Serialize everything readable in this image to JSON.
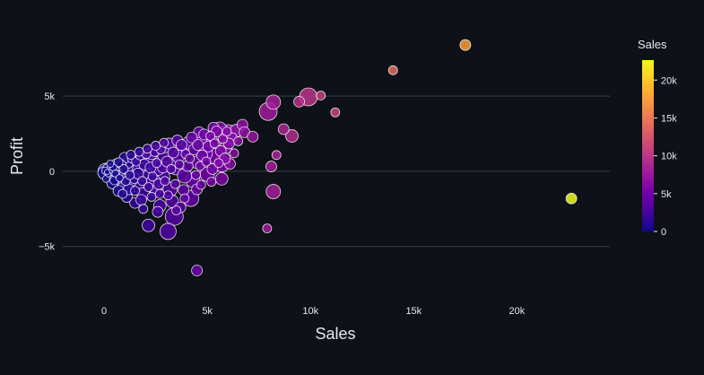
{
  "chart_data": {
    "type": "scatter",
    "title": "",
    "xlabel": "Sales",
    "ylabel": "Profit",
    "xlim": [
      -2000,
      24500
    ],
    "ylim": [
      -8300,
      10500
    ],
    "x_ticks": [
      0,
      5000,
      10000,
      15000,
      20000
    ],
    "x_tick_labels": [
      "0",
      "5k",
      "10k",
      "15k",
      "20k"
    ],
    "y_ticks": [
      -5000,
      0,
      5000
    ],
    "y_tick_labels": [
      "−5k",
      "0",
      "5k"
    ],
    "grid": "horizontal",
    "marker_size": "varies by point",
    "colorbar": {
      "title": "Sales",
      "min": 0,
      "max": 22638,
      "ticks": [
        0,
        5000,
        10000,
        15000,
        20000
      ],
      "tick_labels": [
        "0",
        "5k",
        "10k",
        "15k",
        "20k"
      ],
      "colorscale": [
        "#0d0887",
        "#46039f",
        "#7201a8",
        "#9c179e",
        "#bd3786",
        "#d8576b",
        "#ed7953",
        "#fb9f3a",
        "#fdca26",
        "#f0f921"
      ]
    },
    "points": [
      {
        "x": 17500,
        "y": 8400,
        "r": 6
      },
      {
        "x": 13999,
        "y": 6720,
        "r": 5
      },
      {
        "x": 10500,
        "y": 5040,
        "r": 5
      },
      {
        "x": 9900,
        "y": 4950,
        "r": 10
      },
      {
        "x": 9450,
        "y": 4630,
        "r": 6
      },
      {
        "x": 11200,
        "y": 3920,
        "r": 5
      },
      {
        "x": 8200,
        "y": 4600,
        "r": 8
      },
      {
        "x": 7950,
        "y": 3980,
        "r": 10
      },
      {
        "x": 8700,
        "y": 2800,
        "r": 6
      },
      {
        "x": 9100,
        "y": 2350,
        "r": 7
      },
      {
        "x": 6700,
        "y": 3100,
        "r": 6
      },
      {
        "x": 6400,
        "y": 2700,
        "r": 7
      },
      {
        "x": 6000,
        "y": 2500,
        "r": 10
      },
      {
        "x": 8350,
        "y": 1080,
        "r": 5
      },
      {
        "x": 8100,
        "y": 320,
        "r": 6
      },
      {
        "x": 8200,
        "y": -1350,
        "r": 8
      },
      {
        "x": 7900,
        "y": -3800,
        "r": 5
      },
      {
        "x": 22638,
        "y": -1811,
        "r": 6
      },
      {
        "x": 4500,
        "y": -6600,
        "r": 6
      },
      {
        "x": 3100,
        "y": -4000,
        "r": 9
      },
      {
        "x": 3400,
        "y": -3000,
        "r": 10
      },
      {
        "x": 2150,
        "y": -3600,
        "r": 7
      },
      {
        "x": 4200,
        "y": -1800,
        "r": 9
      },
      {
        "x": 5700,
        "y": -500,
        "r": 7
      },
      {
        "x": 5700,
        "y": 500,
        "r": 9
      },
      {
        "x": 5200,
        "y": 2000,
        "r": 7
      },
      {
        "x": 4900,
        "y": 1200,
        "r": 8
      },
      {
        "x": 4500,
        "y": 600,
        "r": 7
      },
      {
        "x": 4300,
        "y": -600,
        "r": 8
      },
      {
        "x": 3800,
        "y": 1500,
        "r": 8
      },
      {
        "x": 3500,
        "y": 300,
        "r": 9
      },
      {
        "x": 3200,
        "y": -1200,
        "r": 8
      },
      {
        "x": 2900,
        "y": 1000,
        "r": 7
      },
      {
        "x": 2700,
        "y": -2300,
        "r": 7
      },
      {
        "x": 2400,
        "y": -700,
        "r": 8
      },
      {
        "x": 2200,
        "y": 600,
        "r": 7
      },
      {
        "x": 1900,
        "y": -1500,
        "r": 7
      },
      {
        "x": 1700,
        "y": 300,
        "r": 8
      },
      {
        "x": 1500,
        "y": -2100,
        "r": 6
      },
      {
        "x": 1300,
        "y": -600,
        "r": 7
      },
      {
        "x": 1100,
        "y": 300,
        "r": 7
      },
      {
        "x": 900,
        "y": -1100,
        "r": 6
      },
      {
        "x": 700,
        "y": -200,
        "r": 8
      },
      {
        "x": 500,
        "y": 100,
        "r": 7
      },
      {
        "x": 300,
        "y": -300,
        "r": 7
      },
      {
        "x": 100,
        "y": 0,
        "r": 9
      },
      {
        "x": 400,
        "y": -800,
        "r": 6
      },
      {
        "x": 600,
        "y": 400,
        "r": 7
      },
      {
        "x": 800,
        "y": 200,
        "r": 8
      },
      {
        "x": 1000,
        "y": -400,
        "r": 9
      },
      {
        "x": 1200,
        "y": 700,
        "r": 7
      },
      {
        "x": 1400,
        "y": 100,
        "r": 9
      },
      {
        "x": 1600,
        "y": -900,
        "r": 8
      },
      {
        "x": 1800,
        "y": 900,
        "r": 6
      },
      {
        "x": 2000,
        "y": -300,
        "r": 9
      },
      {
        "x": 2300,
        "y": 1200,
        "r": 7
      },
      {
        "x": 2500,
        "y": -1300,
        "r": 6
      },
      {
        "x": 2600,
        "y": 200,
        "r": 8
      },
      {
        "x": 2800,
        "y": -400,
        "r": 9
      },
      {
        "x": 3000,
        "y": 1600,
        "r": 6
      },
      {
        "x": 3300,
        "y": -2000,
        "r": 7
      },
      {
        "x": 3600,
        "y": 1000,
        "r": 7
      },
      {
        "x": 3900,
        "y": -300,
        "r": 8
      },
      {
        "x": 4100,
        "y": 1900,
        "r": 7
      },
      {
        "x": 4700,
        "y": 2200,
        "r": 7
      },
      {
        "x": 5000,
        "y": -200,
        "r": 8
      },
      {
        "x": 5400,
        "y": 1000,
        "r": 9
      },
      {
        "x": 5600,
        "y": 2800,
        "r": 8
      },
      {
        "x": 5900,
        "y": 1600,
        "r": 7
      },
      {
        "x": 6200,
        "y": 2200,
        "r": 6
      },
      {
        "x": 5300,
        "y": 2900,
        "r": 6
      },
      {
        "x": 4600,
        "y": 2600,
        "r": 6
      },
      {
        "x": 1100,
        "y": -1700,
        "r": 6
      },
      {
        "x": 700,
        "y": -1300,
        "r": 6
      },
      {
        "x": 1900,
        "y": -2500,
        "r": 5
      },
      {
        "x": 2600,
        "y": -2700,
        "r": 6
      },
      {
        "x": 3700,
        "y": -2400,
        "r": 6
      },
      {
        "x": 4500,
        "y": -1200,
        "r": 6
      },
      {
        "x": 5200,
        "y": -700,
        "r": 5
      },
      {
        "x": 6100,
        "y": 500,
        "r": 6
      },
      {
        "x": 6800,
        "y": 2600,
        "r": 6
      },
      {
        "x": 7200,
        "y": 2300,
        "r": 6
      },
      {
        "x": 150,
        "y": 200,
        "r": 5
      },
      {
        "x": 250,
        "y": -100,
        "r": 4
      },
      {
        "x": 50,
        "y": 50,
        "r": 4
      },
      {
        "x": 350,
        "y": 150,
        "r": 5
      },
      {
        "x": 200,
        "y": -200,
        "r": 3
      },
      {
        "x": 450,
        "y": 250,
        "r": 4
      },
      {
        "x": 550,
        "y": -150,
        "r": 4
      },
      {
        "x": 650,
        "y": 350,
        "r": 5
      },
      {
        "x": 750,
        "y": -450,
        "r": 4
      },
      {
        "x": 850,
        "y": 450,
        "r": 5
      },
      {
        "x": 950,
        "y": 150,
        "r": 5
      },
      {
        "x": 1050,
        "y": -650,
        "r": 5
      },
      {
        "x": 1150,
        "y": 550,
        "r": 6
      },
      {
        "x": 1250,
        "y": -250,
        "r": 5
      },
      {
        "x": 1350,
        "y": 850,
        "r": 5
      },
      {
        "x": 1450,
        "y": -450,
        "r": 6
      },
      {
        "x": 1550,
        "y": 650,
        "r": 5
      },
      {
        "x": 1650,
        "y": -150,
        "r": 6
      },
      {
        "x": 1750,
        "y": 1050,
        "r": 5
      },
      {
        "x": 1850,
        "y": -650,
        "r": 5
      },
      {
        "x": 1950,
        "y": 450,
        "r": 6
      },
      {
        "x": 2050,
        "y": 1150,
        "r": 5
      },
      {
        "x": 2150,
        "y": -1050,
        "r": 5
      },
      {
        "x": 2250,
        "y": 250,
        "r": 6
      },
      {
        "x": 2350,
        "y": -350,
        "r": 5
      },
      {
        "x": 2450,
        "y": 1350,
        "r": 6
      },
      {
        "x": 2550,
        "y": 550,
        "r": 5
      },
      {
        "x": 2650,
        "y": -850,
        "r": 6
      },
      {
        "x": 2750,
        "y": 1450,
        "r": 5
      },
      {
        "x": 2850,
        "y": 250,
        "r": 6
      },
      {
        "x": 2950,
        "y": -650,
        "r": 5
      },
      {
        "x": 3050,
        "y": 650,
        "r": 6
      },
      {
        "x": 3150,
        "y": 1850,
        "r": 6
      },
      {
        "x": 3250,
        "y": 150,
        "r": 5
      },
      {
        "x": 3350,
        "y": 1250,
        "r": 6
      },
      {
        "x": 3450,
        "y": -850,
        "r": 5
      },
      {
        "x": 3550,
        "y": 2050,
        "r": 6
      },
      {
        "x": 3650,
        "y": 450,
        "r": 5
      },
      {
        "x": 3750,
        "y": 1750,
        "r": 6
      },
      {
        "x": 3850,
        "y": -1250,
        "r": 6
      },
      {
        "x": 3950,
        "y": 1150,
        "r": 5
      },
      {
        "x": 4050,
        "y": 350,
        "r": 6
      },
      {
        "x": 4150,
        "y": 850,
        "r": 5
      },
      {
        "x": 4250,
        "y": 2250,
        "r": 6
      },
      {
        "x": 4350,
        "y": 1450,
        "r": 6
      },
      {
        "x": 4450,
        "y": -250,
        "r": 5
      },
      {
        "x": 4550,
        "y": 1750,
        "r": 6
      },
      {
        "x": 4650,
        "y": 350,
        "r": 5
      },
      {
        "x": 4750,
        "y": 1050,
        "r": 6
      },
      {
        "x": 4850,
        "y": 2450,
        "r": 6
      },
      {
        "x": 4950,
        "y": 650,
        "r": 5
      },
      {
        "x": 5050,
        "y": 1650,
        "r": 6
      },
      {
        "x": 5150,
        "y": 2350,
        "r": 5
      },
      {
        "x": 5250,
        "y": 150,
        "r": 6
      },
      {
        "x": 5350,
        "y": 1850,
        "r": 5
      },
      {
        "x": 5450,
        "y": 2650,
        "r": 6
      },
      {
        "x": 5550,
        "y": 550,
        "r": 5
      },
      {
        "x": 5650,
        "y": 1350,
        "r": 6
      },
      {
        "x": 5750,
        "y": 2150,
        "r": 5
      },
      {
        "x": 5850,
        "y": 850,
        "r": 6
      },
      {
        "x": 5950,
        "y": 2650,
        "r": 5
      },
      {
        "x": 6050,
        "y": 1850,
        "r": 6
      },
      {
        "x": 6300,
        "y": 1200,
        "r": 5
      },
      {
        "x": 6500,
        "y": 2000,
        "r": 5
      },
      {
        "x": 1000,
        "y": 900,
        "r": 6
      },
      {
        "x": 1300,
        "y": 1100,
        "r": 5
      },
      {
        "x": 1700,
        "y": 1300,
        "r": 5
      },
      {
        "x": 2100,
        "y": 1500,
        "r": 5
      },
      {
        "x": 2500,
        "y": 1700,
        "r": 5
      },
      {
        "x": 2900,
        "y": 1900,
        "r": 5
      },
      {
        "x": 1500,
        "y": -1300,
        "r": 5
      },
      {
        "x": 2300,
        "y": -1700,
        "r": 5
      },
      {
        "x": 3100,
        "y": -1600,
        "r": 5
      },
      {
        "x": 3900,
        "y": -1800,
        "r": 5
      },
      {
        "x": 4700,
        "y": -900,
        "r": 5
      },
      {
        "x": 500,
        "y": -600,
        "r": 5
      },
      {
        "x": 900,
        "y": -1500,
        "r": 5
      },
      {
        "x": 1200,
        "y": -1200,
        "r": 6
      },
      {
        "x": 1800,
        "y": -1900,
        "r": 6
      },
      {
        "x": 2700,
        "y": -1500,
        "r": 5
      },
      {
        "x": 3500,
        "y": -2600,
        "r": 5
      },
      {
        "x": 100,
        "y": -500,
        "r": 4
      },
      {
        "x": 300,
        "y": 500,
        "r": 4
      },
      {
        "x": 700,
        "y": 600,
        "r": 5
      },
      {
        "x": 200,
        "y": 100,
        "r": 6
      },
      {
        "x": 0,
        "y": -100,
        "r": 7
      },
      {
        "x": 150,
        "y": -50,
        "r": 3
      }
    ]
  }
}
